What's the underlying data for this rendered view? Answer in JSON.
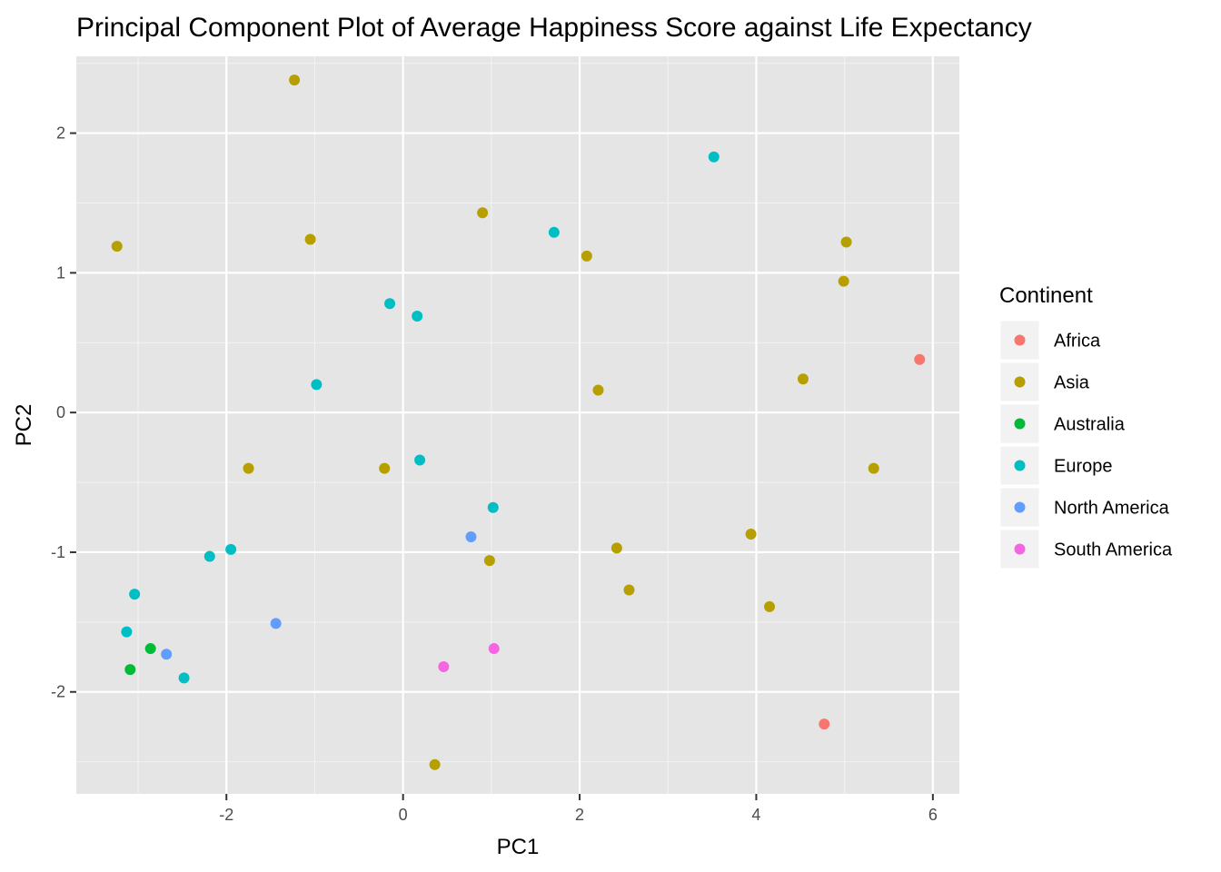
{
  "chart_data": {
    "type": "scatter",
    "title": "Principal Component Plot of Average Happiness Score against Life Expectancy",
    "xlabel": "PC1",
    "ylabel": "PC2",
    "xlim": [
      -3.7,
      6.3
    ],
    "ylim": [
      -2.73,
      2.55
    ],
    "x_ticks": [
      -2,
      0,
      2,
      4,
      6
    ],
    "y_ticks": [
      -2,
      -1,
      0,
      1,
      2
    ],
    "grid": true,
    "background": "#e5e5e5",
    "legend": {
      "title": "Continent",
      "placement": "right"
    },
    "series": [
      {
        "name": "Africa",
        "color": "#f8766d",
        "points": [
          [
            5.85,
            0.38
          ],
          [
            4.77,
            -2.23
          ]
        ]
      },
      {
        "name": "Asia",
        "color": "#b79f00",
        "points": [
          [
            -1.23,
            2.38
          ],
          [
            0.9,
            1.43
          ],
          [
            -3.24,
            1.19
          ],
          [
            -1.05,
            1.24
          ],
          [
            2.08,
            1.12
          ],
          [
            5.02,
            1.22
          ],
          [
            4.99,
            0.94
          ],
          [
            4.53,
            0.24
          ],
          [
            2.21,
            0.16
          ],
          [
            -1.75,
            -0.4
          ],
          [
            -0.21,
            -0.4
          ],
          [
            5.33,
            -0.4
          ],
          [
            3.94,
            -0.87
          ],
          [
            2.42,
            -0.97
          ],
          [
            0.98,
            -1.06
          ],
          [
            2.56,
            -1.27
          ],
          [
            4.15,
            -1.39
          ],
          [
            0.36,
            -2.52
          ]
        ]
      },
      {
        "name": "Australia",
        "color": "#00ba38",
        "points": [
          [
            -2.86,
            -1.69
          ],
          [
            -3.09,
            -1.84
          ]
        ]
      },
      {
        "name": "Europe",
        "color": "#00bfc4",
        "points": [
          [
            3.52,
            1.83
          ],
          [
            1.71,
            1.29
          ],
          [
            -0.15,
            0.78
          ],
          [
            0.16,
            0.69
          ],
          [
            -0.98,
            0.2
          ],
          [
            0.19,
            -0.34
          ],
          [
            1.02,
            -0.68
          ],
          [
            -1.95,
            -0.98
          ],
          [
            -2.19,
            -1.03
          ],
          [
            -3.04,
            -1.3
          ],
          [
            -3.13,
            -1.57
          ],
          [
            -2.48,
            -1.9
          ]
        ]
      },
      {
        "name": "North America",
        "color": "#619cff",
        "points": [
          [
            0.77,
            -0.89
          ],
          [
            -1.44,
            -1.51
          ],
          [
            -2.68,
            -1.73
          ]
        ]
      },
      {
        "name": "South America",
        "color": "#f564e3",
        "points": [
          [
            0.46,
            -1.82
          ],
          [
            1.03,
            -1.69
          ]
        ]
      }
    ]
  }
}
